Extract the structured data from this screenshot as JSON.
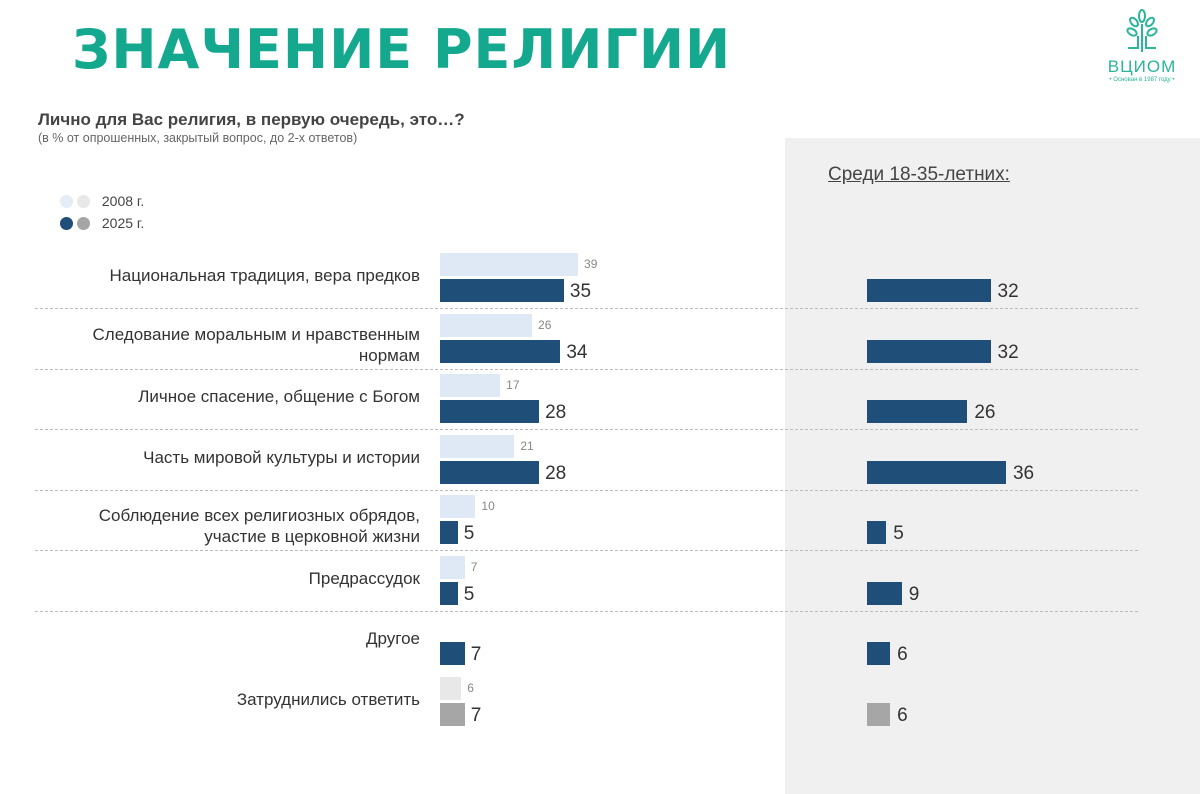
{
  "title": "ЗНАЧЕНИЕ РЕЛИГИИ",
  "logo": {
    "name": "ВЦИОМ",
    "tagline": "• Основан в 1987 году •"
  },
  "chart_data": {
    "type": "bar",
    "orientation": "horizontal",
    "question": "Личнo для Вас религия, в первую очередь, это…?",
    "note": "(в % от опрошенных, закрытый вопрос, до 2-х ответов)",
    "subtitle_right": "Среди 18-35-летних:",
    "legend": [
      "2008 г.",
      "2025 г."
    ],
    "categories": [
      "Национальная традиция, вера предков",
      "Следование моральным и нравственным нормам",
      "Личное спасение, общение с Богом",
      "Часть мировой культуры и истории",
      "Соблюдение всех религиозных обрядов, участие в церковной жизни",
      "Предрассудок",
      "Другое",
      "Затруднились ответить"
    ],
    "series": [
      {
        "name": "2008 г.",
        "values": [
          39,
          26,
          17,
          21,
          10,
          7,
          null,
          6
        ]
      },
      {
        "name": "2025 г.",
        "values": [
          35,
          34,
          28,
          28,
          5,
          5,
          7,
          7
        ]
      },
      {
        "name": "Среди 18-35-летних:",
        "values": [
          32,
          32,
          26,
          36,
          5,
          9,
          6,
          6
        ]
      }
    ],
    "colors": {
      "2008": "#dfe9f5",
      "2025": "#1f4e79",
      "2008_dk": "#e8e8e8",
      "2025_dk": "#a6a6a6"
    }
  }
}
